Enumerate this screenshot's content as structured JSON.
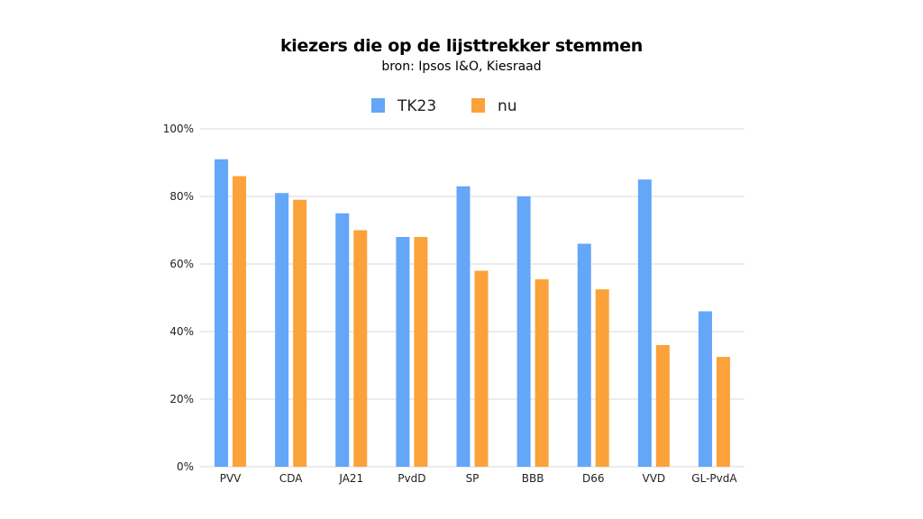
{
  "chart_data": {
    "type": "bar",
    "title": "kiezers die op de lijsttrekker stemmen",
    "subtitle": "bron: Ipsos I&O, Kiesraad",
    "xlabel": "",
    "ylabel": "",
    "ylim": [
      0,
      100
    ],
    "yticks": [
      "0%",
      "20%",
      "40%",
      "60%",
      "80%",
      "100%"
    ],
    "ytick_values": [
      0,
      20,
      40,
      60,
      80,
      100
    ],
    "grid": true,
    "legend_position": "top-center",
    "categories": [
      "PVV",
      "CDA",
      "JA21",
      "PvdD",
      "SP",
      "BBB",
      "D66",
      "VVD",
      "GL-PvdA"
    ],
    "series": [
      {
        "name": "TK23",
        "color": "#64a6f8",
        "values": [
          91,
          81,
          75,
          68,
          83,
          80,
          66,
          85,
          46
        ]
      },
      {
        "name": "nu",
        "color": "#fba23a",
        "values": [
          86,
          79,
          70,
          68,
          58,
          55.5,
          52.5,
          36,
          32.5
        ]
      }
    ]
  }
}
